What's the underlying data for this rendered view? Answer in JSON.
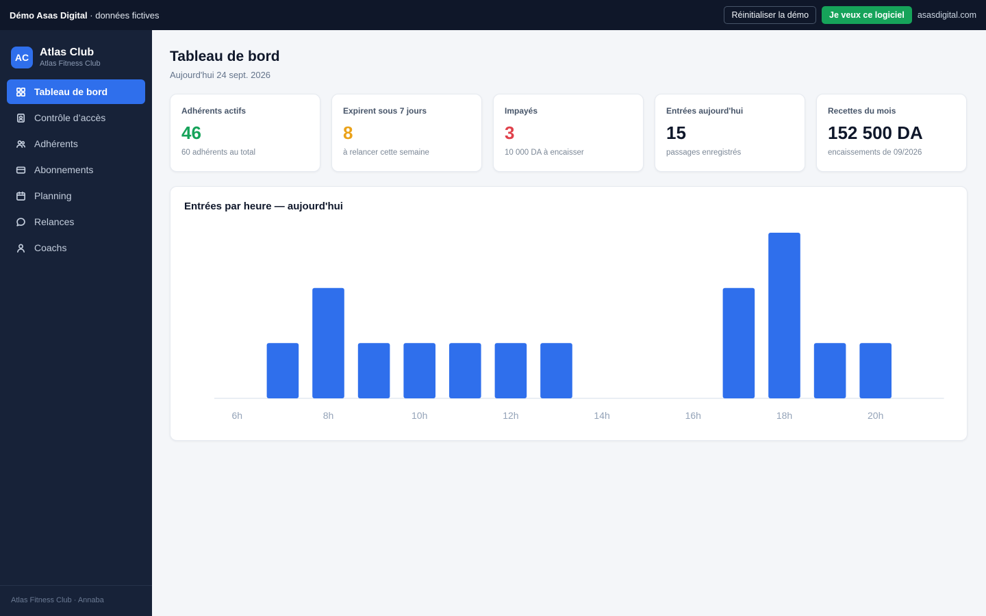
{
  "topbar": {
    "brand_bold": "Démo Asas Digital",
    "brand_rest": " · données fictives",
    "reset_label": "Réinitialiser la démo",
    "want_label": "Je veux ce logiciel",
    "site_label": "asasdigital.com"
  },
  "sidebar": {
    "logo_initials": "AC",
    "club_name": "Atlas Club",
    "club_full": "Atlas Fitness Club",
    "items": [
      {
        "label": "Tableau de bord",
        "icon": "dashboard-icon",
        "active": true
      },
      {
        "label": "Contrôle d’accès",
        "icon": "badge-icon",
        "active": false
      },
      {
        "label": "Adhérents",
        "icon": "users-icon",
        "active": false
      },
      {
        "label": "Abonnements",
        "icon": "card-icon",
        "active": false
      },
      {
        "label": "Planning",
        "icon": "calendar-icon",
        "active": false
      },
      {
        "label": "Relances",
        "icon": "message-icon",
        "active": false
      },
      {
        "label": "Coachs",
        "icon": "user-icon",
        "active": false
      }
    ],
    "footer": "Atlas Fitness Club · Annaba"
  },
  "page": {
    "title": "Tableau de bord",
    "date": "Aujourd'hui 24 sept. 2026"
  },
  "stats": [
    {
      "label": "Adhérents actifs",
      "value": "46",
      "sub": "60 adhérents au total",
      "color": "#16a35a"
    },
    {
      "label": "Expirent sous 7 jours",
      "value": "8",
      "sub": "à relancer cette semaine",
      "color": "#eaa21a"
    },
    {
      "label": "Impayés",
      "value": "3",
      "sub": "10 000 DA à encaisser",
      "color": "#e0414b"
    },
    {
      "label": "Entrées aujourd'hui",
      "value": "15",
      "sub": "passages enregistrés",
      "color": "#0f172a"
    },
    {
      "label": "Recettes du mois",
      "value": "152 500 DA",
      "sub": "encaissements de 09/2026",
      "color": "#0f172a"
    }
  ],
  "chart_title": "Entrées par heure — aujourd'hui",
  "colors": {
    "accent": "#2f6fec",
    "bar": "#2f6fec",
    "sidebar": "#172238",
    "topbar": "#0f1729"
  },
  "chart_data": {
    "type": "bar",
    "categories": [
      "6h",
      "7h",
      "8h",
      "9h",
      "10h",
      "11h",
      "12h",
      "13h",
      "14h",
      "15h",
      "16h",
      "17h",
      "18h",
      "19h",
      "20h",
      "21h"
    ],
    "values": [
      0,
      1,
      2,
      1,
      1,
      1,
      1,
      1,
      0,
      0,
      0,
      2,
      3,
      1,
      1,
      0
    ],
    "tick_labels": [
      "6h",
      "8h",
      "10h",
      "12h",
      "14h",
      "16h",
      "18h",
      "20h"
    ],
    "ylim": [
      0,
      3
    ],
    "grid": false,
    "legend": "none"
  }
}
